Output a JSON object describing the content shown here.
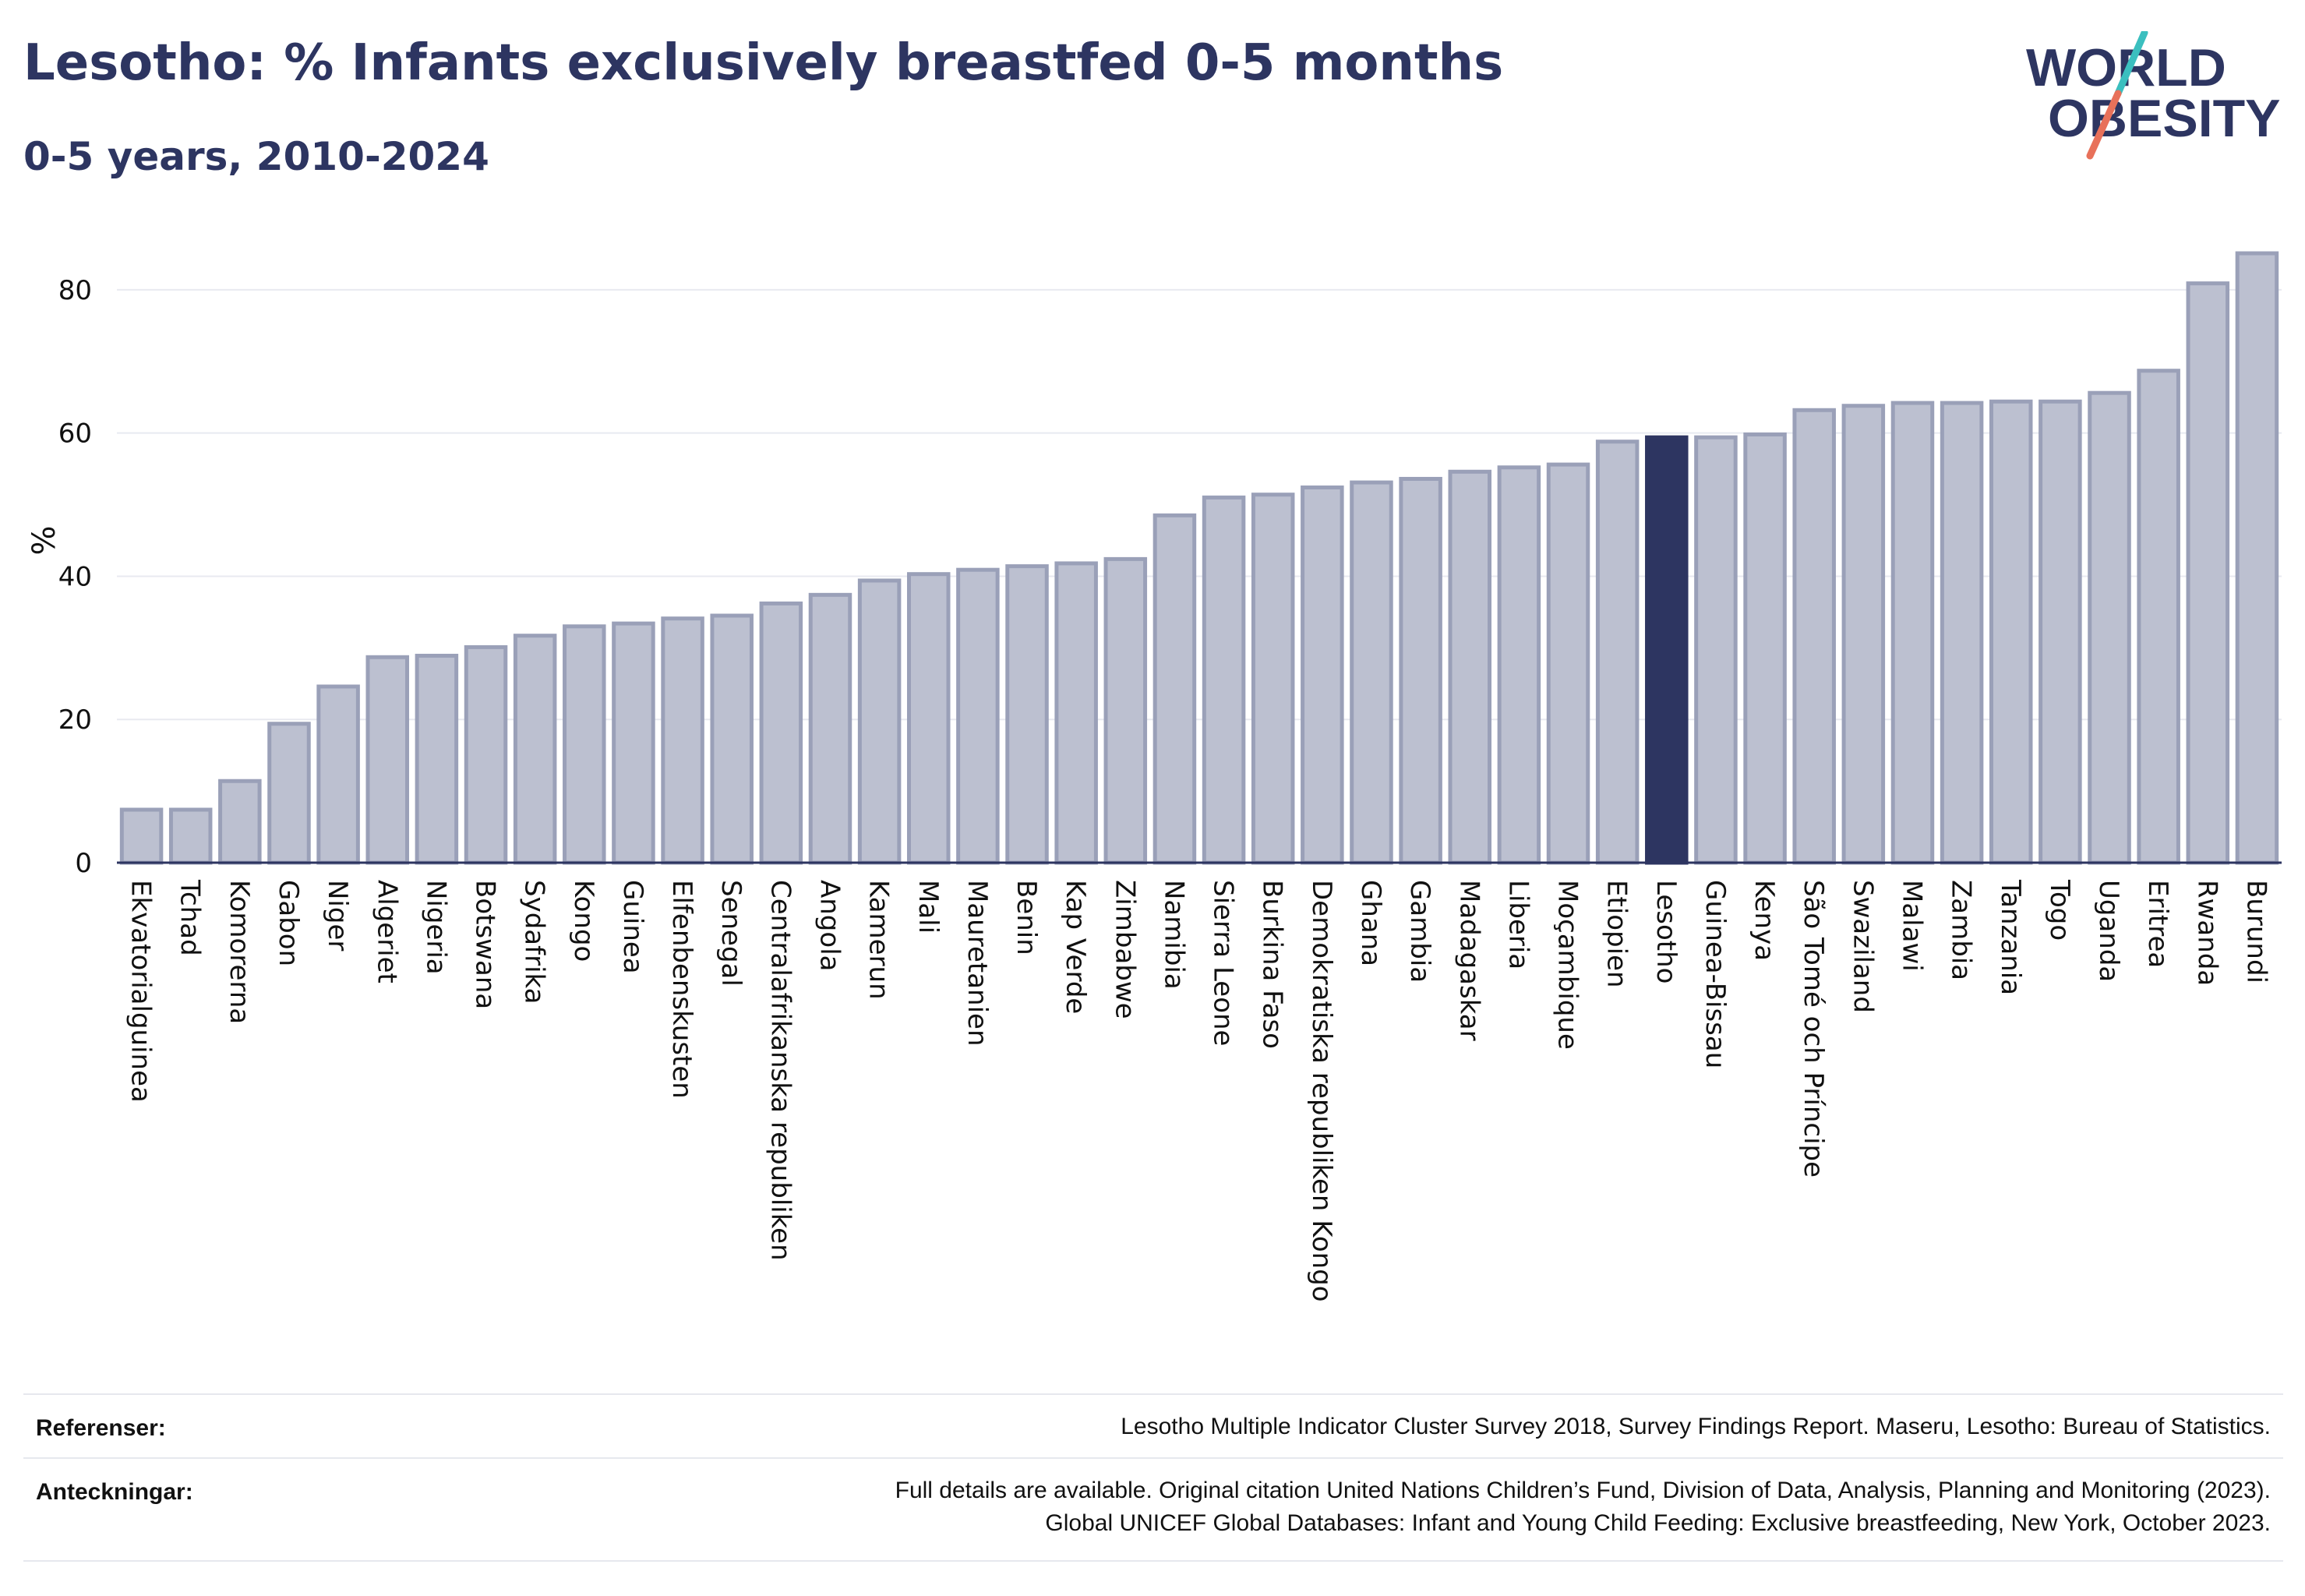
{
  "header": {
    "title": "Lesotho: % Infants exclusively breastfed 0-5 months",
    "subtitle": "0-5 years, 2010-2024"
  },
  "logo": {
    "line1": "WORLD",
    "line2": "OBESITY"
  },
  "colors": {
    "bar": "#bcc0d0",
    "bar_edge": "#9aa0b8",
    "highlight": "#2d3561",
    "grid": "#e8eaf0",
    "axis": "#2d3561"
  },
  "chart_data": {
    "type": "bar",
    "title": "Lesotho: % Infants exclusively breastfed 0-5 months",
    "subtitle": "0-5 years, 2010-2024",
    "xlabel": "",
    "ylabel": "%",
    "ylim": [
      0,
      90
    ],
    "yticks": [
      0,
      20,
      40,
      60,
      80
    ],
    "grid": true,
    "highlight": "Lesotho",
    "categories": [
      "Ekvatorialguinea",
      "Tchad",
      "Komorerna",
      "Gabon",
      "Niger",
      "Algeriet",
      "Nigeria",
      "Botswana",
      "Sydafrika",
      "Kongo",
      "Guinea",
      "Elfenbenskusten",
      "Senegal",
      "Centralafrikanska republiken",
      "Angola",
      "Kamerun",
      "Mali",
      "Mauretanien",
      "Benin",
      "Kap Verde",
      "Zimbabwe",
      "Namibia",
      "Sierra Leone",
      "Burkina Faso",
      "Demokratiska republiken Kongo",
      "Ghana",
      "Gambia",
      "Madagaskar",
      "Liberia",
      "Moçambique",
      "Etiopien",
      "Lesotho",
      "Guinea-Bissau",
      "Kenya",
      "São Tomé och Príncipe",
      "Swaziland",
      "Malawi",
      "Zambia",
      "Tanzania",
      "Togo",
      "Uganda",
      "Eritrea",
      "Rwanda",
      "Burundi"
    ],
    "values": [
      7.4,
      7.4,
      11.4,
      19.4,
      24.6,
      28.7,
      28.9,
      30.1,
      31.7,
      33.0,
      33.4,
      34.1,
      34.5,
      36.2,
      37.4,
      39.4,
      40.3,
      40.9,
      41.4,
      41.8,
      42.4,
      48.5,
      51.0,
      51.4,
      52.4,
      53.1,
      53.6,
      54.6,
      55.2,
      55.6,
      58.8,
      59.4,
      59.4,
      59.8,
      63.2,
      63.8,
      64.2,
      64.2,
      64.4,
      64.4,
      65.6,
      68.7,
      80.9,
      85.1
    ]
  },
  "footer": {
    "references_label": "Referenser:",
    "references_text": "Lesotho Multiple Indicator Cluster Survey 2018, Survey Findings Report. Maseru, Lesotho: Bureau of Statistics.",
    "notes_label": "Anteckningar:",
    "notes_line1": "Full details are available. Original citation United Nations Children’s Fund, Division of Data, Analysis, Planning and Monitoring (2023).",
    "notes_line2": "Global UNICEF Global Databases: Infant and Young Child Feeding: Exclusive breastfeeding, New York, October 2023."
  }
}
